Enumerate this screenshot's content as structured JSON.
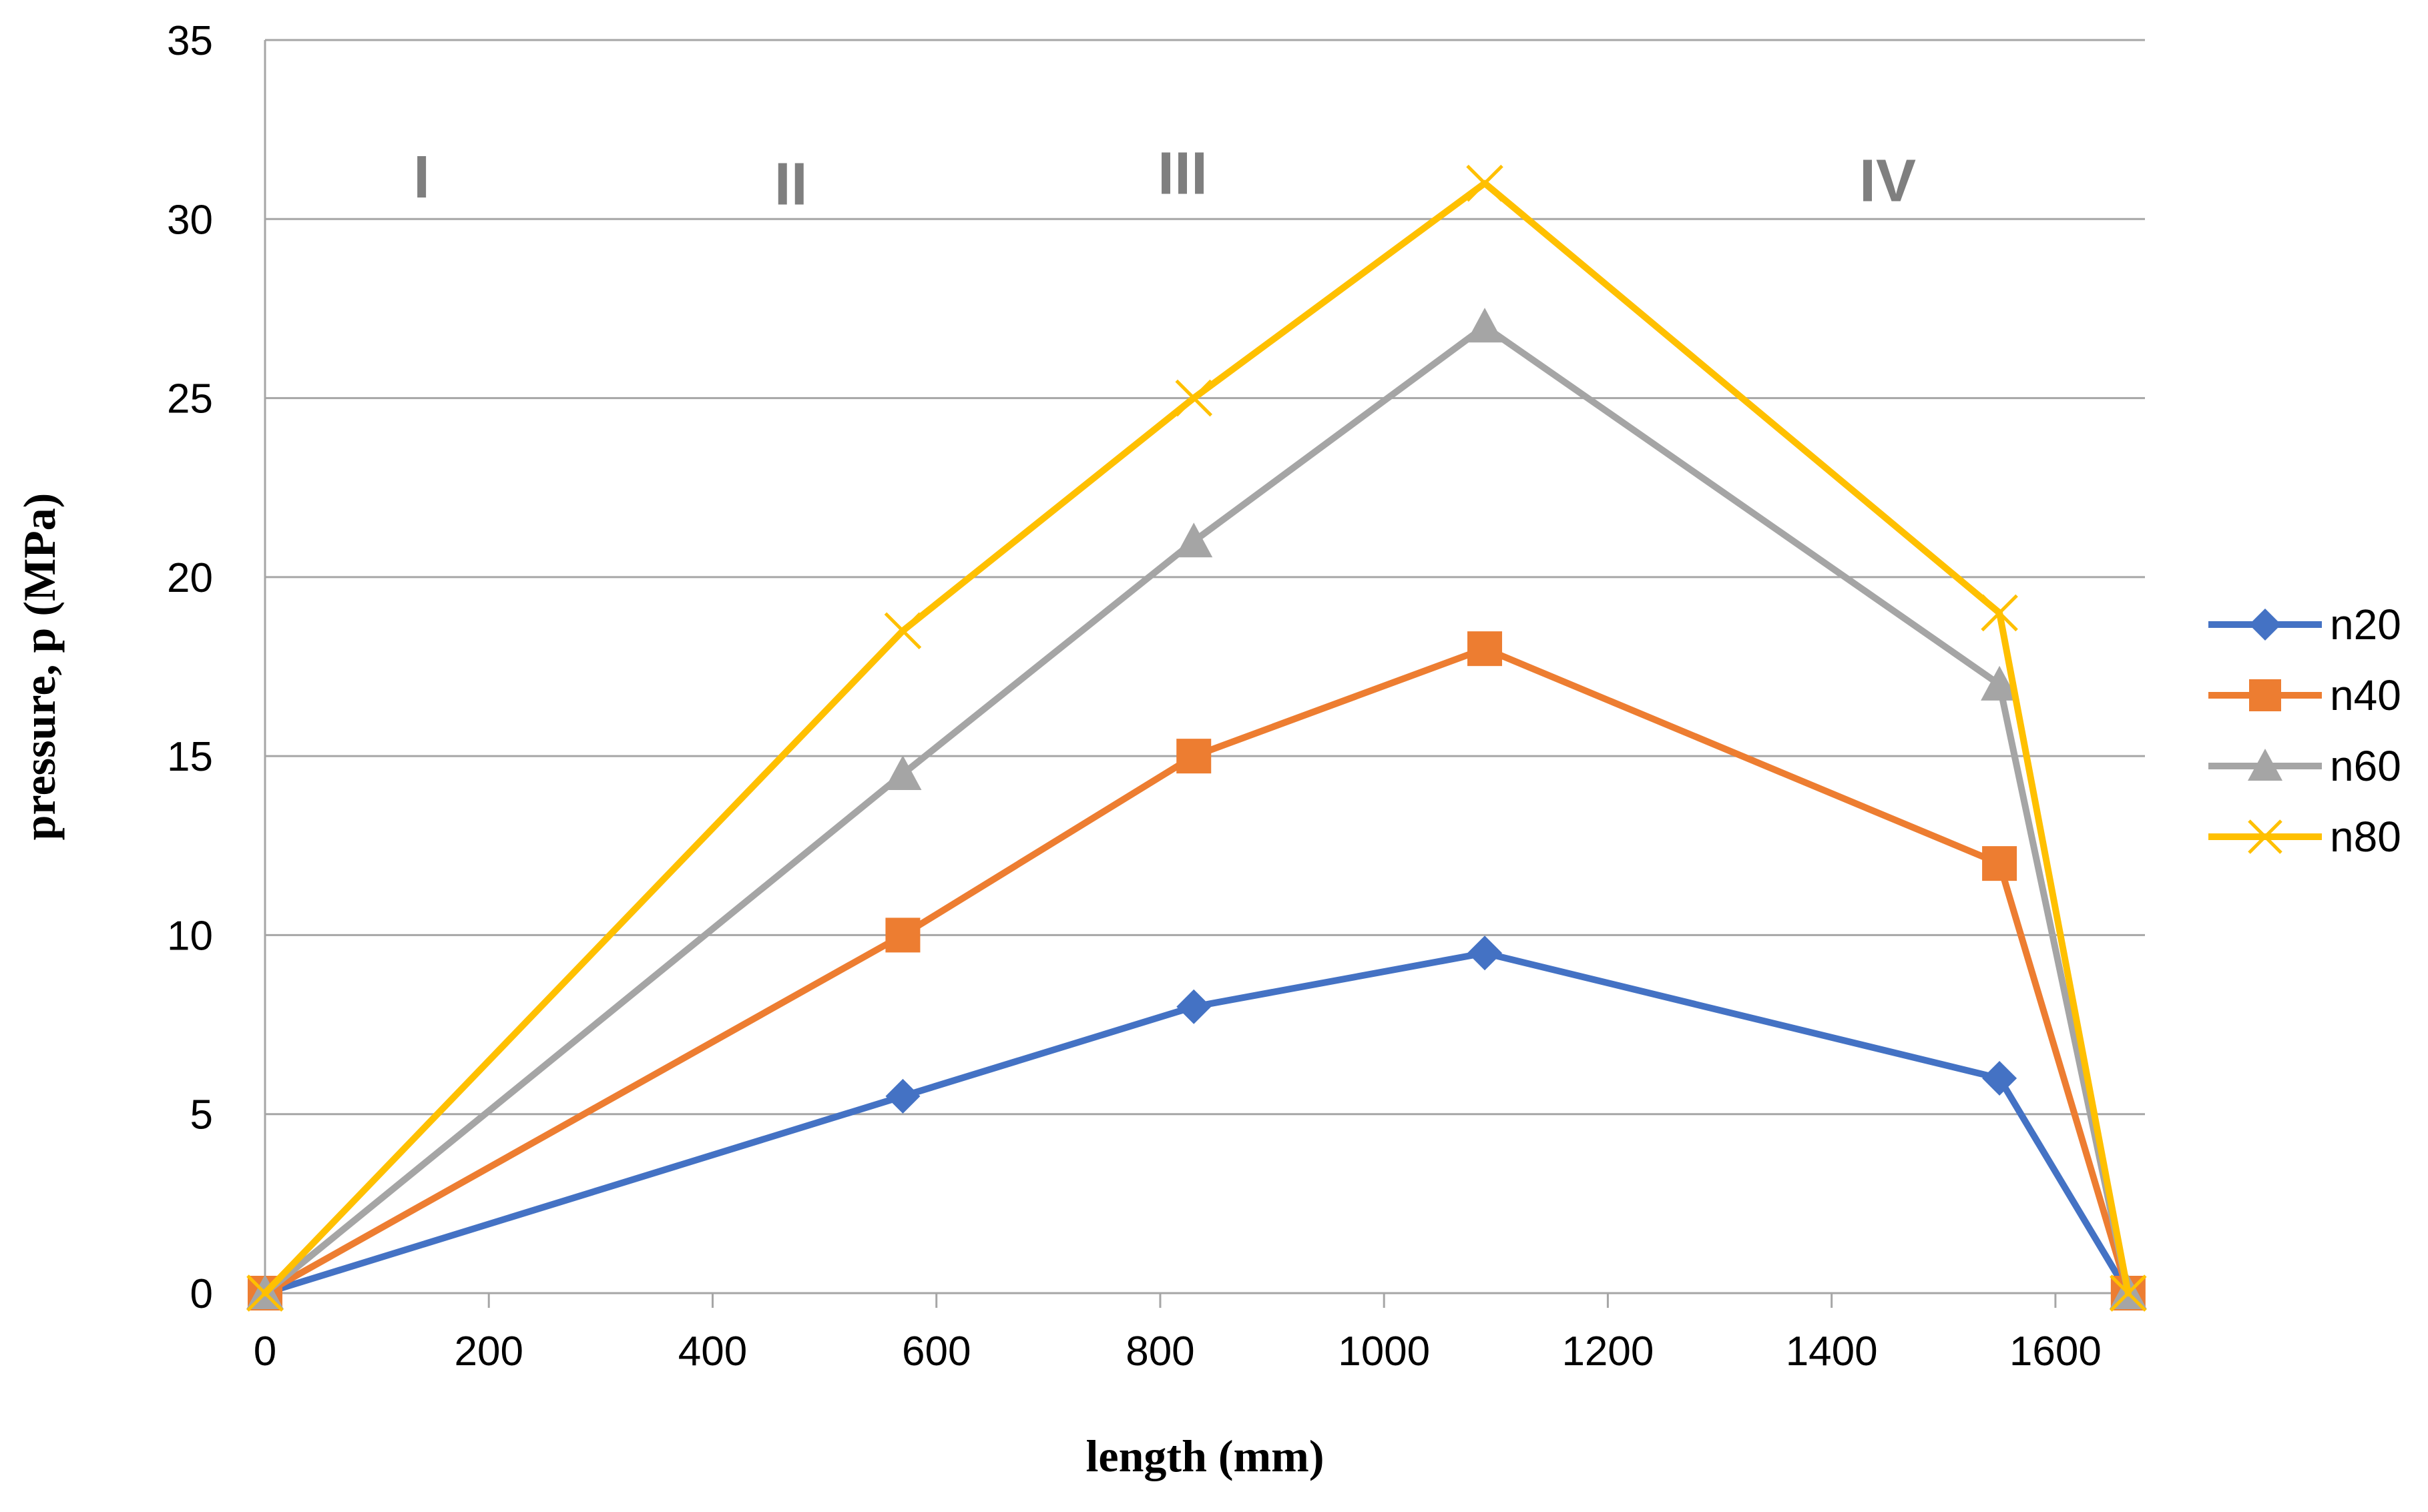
{
  "chart_data": {
    "type": "line",
    "title": "",
    "xlabel": "length (mm)",
    "ylabel": "pressure, p (MPa)",
    "xlim": [
      0,
      1680
    ],
    "ylim": [
      0,
      35
    ],
    "x_ticks": [
      0,
      200,
      400,
      600,
      800,
      1000,
      1200,
      1400,
      1600
    ],
    "y_ticks": [
      0,
      5,
      10,
      15,
      20,
      25,
      30,
      35
    ],
    "grid": "horizontal",
    "legend_position": "right",
    "x": [
      0,
      570,
      830,
      1090,
      1550,
      1665
    ],
    "series": [
      {
        "name": "n20",
        "color": "#4472c4",
        "marker": "diamond",
        "values": [
          0,
          5.5,
          8,
          9.5,
          6,
          0
        ]
      },
      {
        "name": "n40",
        "color": "#ed7d31",
        "marker": "square",
        "values": [
          0,
          10,
          15,
          18,
          12,
          0
        ]
      },
      {
        "name": "n60",
        "color": "#a5a5a5",
        "marker": "triangle",
        "values": [
          0,
          14.5,
          21,
          27,
          17,
          0
        ]
      },
      {
        "name": "n80",
        "color": "#ffc000",
        "marker": "x",
        "values": [
          0,
          18.5,
          25,
          31,
          19,
          0
        ]
      }
    ],
    "annotations": [
      {
        "text": "I",
        "x": 140,
        "y": 31.2
      },
      {
        "text": "II",
        "x": 470,
        "y": 31.0
      },
      {
        "text": "III",
        "x": 820,
        "y": 31.3
      },
      {
        "text": "IV",
        "x": 1450,
        "y": 31.1
      }
    ]
  }
}
